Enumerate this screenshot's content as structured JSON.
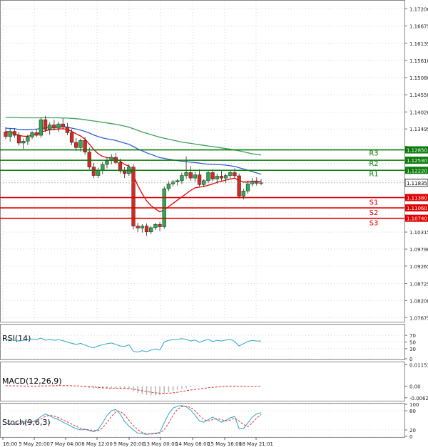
{
  "colors": {
    "up": "#32a852",
    "down": "#d42a1f",
    "ma_fast": "#e00000",
    "ma_mid": "#2f5fd0",
    "ma_slow": "#3a9f5a",
    "resistance": "#0a7a0a",
    "support": "#e00000",
    "indicator": "#2aa6c8",
    "signal": "#e03030",
    "grid": "#b8b8b8"
  },
  "chart_data": [
    {
      "type": "candlestick",
      "title": "",
      "x_labels": [
        "16:00",
        "5 May 20:00",
        "7 May 04:00",
        "8 May 12:00",
        "9 May 20:00",
        "13 May 00:00",
        "14 May 08:00",
        "15 May 16:00",
        "18 May 21:01"
      ],
      "y_ticks": [
        "1.17200",
        "1.16675",
        "1.16135",
        "1.15610",
        "1.15080",
        "1.14550",
        "1.14020",
        "1.13495",
        "1.12960",
        "1.12430",
        "1.11900",
        "1.11375",
        "1.10840",
        "1.10315",
        "1.09790",
        "1.09265",
        "1.08725",
        "1.08200",
        "1.07675"
      ],
      "ylim": [
        1.0755,
        1.1745
      ],
      "candles": [
        [
          1.134,
          1.1355,
          1.1318,
          1.1326
        ],
        [
          1.1326,
          1.135,
          1.131,
          1.1342
        ],
        [
          1.1342,
          1.1352,
          1.1322,
          1.133
        ],
        [
          1.133,
          1.134,
          1.1298,
          1.1306
        ],
        [
          1.1306,
          1.132,
          1.1288,
          1.1312
        ],
        [
          1.1312,
          1.1332,
          1.13,
          1.1325
        ],
        [
          1.1325,
          1.1343,
          1.1318,
          1.1338
        ],
        [
          1.1338,
          1.135,
          1.1325,
          1.133
        ],
        [
          1.133,
          1.1385,
          1.1322,
          1.1378
        ],
        [
          1.1378,
          1.139,
          1.134,
          1.1348
        ],
        [
          1.1348,
          1.137,
          1.1332,
          1.1362
        ],
        [
          1.1362,
          1.1378,
          1.1345,
          1.1352
        ],
        [
          1.1352,
          1.1372,
          1.134,
          1.1365
        ],
        [
          1.1365,
          1.1382,
          1.1348,
          1.1355
        ],
        [
          1.1355,
          1.1368,
          1.133,
          1.1338
        ],
        [
          1.1338,
          1.1348,
          1.13,
          1.1308
        ],
        [
          1.1308,
          1.1322,
          1.1282,
          1.1292
        ],
        [
          1.1292,
          1.132,
          1.128,
          1.1314
        ],
        [
          1.1314,
          1.1325,
          1.127,
          1.1278
        ],
        [
          1.1278,
          1.1292,
          1.1225,
          1.1232
        ],
        [
          1.1232,
          1.1245,
          1.1198,
          1.1206
        ],
        [
          1.1206,
          1.123,
          1.1198,
          1.1222
        ],
        [
          1.1222,
          1.1248,
          1.121,
          1.124
        ],
        [
          1.124,
          1.1262,
          1.1228,
          1.1252
        ],
        [
          1.1252,
          1.1272,
          1.124,
          1.1262
        ],
        [
          1.1262,
          1.1276,
          1.124,
          1.1246
        ],
        [
          1.1246,
          1.1258,
          1.1212,
          1.122
        ],
        [
          1.122,
          1.1232,
          1.1198,
          1.1212
        ],
        [
          1.1212,
          1.124,
          1.1205,
          1.1232
        ],
        [
          1.1232,
          1.124,
          1.104,
          1.105
        ],
        [
          1.105,
          1.106,
          1.1032,
          1.1044
        ],
        [
          1.1044,
          1.1056,
          1.103,
          1.105
        ],
        [
          1.105,
          1.1058,
          1.102,
          1.1032
        ],
        [
          1.1032,
          1.105,
          1.1025,
          1.1045
        ],
        [
          1.1045,
          1.106,
          1.1038,
          1.1055
        ],
        [
          1.1055,
          1.1062,
          1.1035,
          1.1048
        ],
        [
          1.1048,
          1.1172,
          1.1042,
          1.1165
        ],
        [
          1.1165,
          1.1188,
          1.1158,
          1.118
        ],
        [
          1.118,
          1.1192,
          1.1172,
          1.1186
        ],
        [
          1.1186,
          1.1196,
          1.1175,
          1.119
        ],
        [
          1.119,
          1.1215,
          1.118,
          1.1206
        ],
        [
          1.1206,
          1.1265,
          1.1195,
          1.1215
        ],
        [
          1.1215,
          1.1235,
          1.119,
          1.1198
        ],
        [
          1.1198,
          1.1218,
          1.1188,
          1.1208
        ],
        [
          1.1208,
          1.1225,
          1.1172,
          1.1178
        ],
        [
          1.1178,
          1.1195,
          1.117,
          1.119
        ],
        [
          1.119,
          1.1222,
          1.1182,
          1.1215
        ],
        [
          1.1215,
          1.1225,
          1.1188,
          1.1195
        ],
        [
          1.1195,
          1.1212,
          1.118,
          1.1204
        ],
        [
          1.1204,
          1.122,
          1.119,
          1.1198
        ],
        [
          1.1198,
          1.1212,
          1.1182,
          1.1206
        ],
        [
          1.1206,
          1.1222,
          1.1196,
          1.1215
        ],
        [
          1.1215,
          1.1228,
          1.1198,
          1.1205
        ],
        [
          1.1205,
          1.1212,
          1.1135,
          1.1142
        ],
        [
          1.1142,
          1.1165,
          1.1132,
          1.1158
        ],
        [
          1.1158,
          1.119,
          1.115,
          1.118
        ],
        [
          1.118,
          1.1198,
          1.1172,
          1.1188
        ],
        [
          1.1188,
          1.12,
          1.1175,
          1.1182
        ],
        [
          1.1182,
          1.1195,
          1.1176,
          1.11835
        ]
      ],
      "moving_averages": [
        {
          "color_key": "ma_fast",
          "start": 0,
          "values": [
            1.1342,
            1.134,
            1.1335,
            1.133,
            1.1327,
            1.1327,
            1.133,
            1.1333,
            1.134,
            1.1344,
            1.1347,
            1.1348,
            1.1349,
            1.135,
            1.1348,
            1.1342,
            1.1334,
            1.1328,
            1.1318,
            1.1303,
            1.1286,
            1.1273,
            1.1265,
            1.1261,
            1.126,
            1.1258,
            1.125,
            1.124,
            1.1235,
            1.1205,
            1.1175,
            1.115,
            1.1128,
            1.1113,
            1.1103,
            1.1094,
            1.11,
            1.111,
            1.112,
            1.113,
            1.114,
            1.115,
            1.116,
            1.1168,
            1.117,
            1.1172,
            1.1176,
            1.118,
            1.1185,
            1.1188,
            1.1192,
            1.1195,
            1.1198,
            1.119,
            1.1186,
            1.1186,
            1.1188,
            1.1188,
            1.1186
          ]
        },
        {
          "color_key": "ma_mid",
          "start": 0,
          "values": [
            1.1352,
            1.1351,
            1.135,
            1.1348,
            1.1347,
            1.1347,
            1.1348,
            1.1349,
            1.1351,
            1.1353,
            1.1354,
            1.1355,
            1.1356,
            1.1356,
            1.1355,
            1.1352,
            1.1349,
            1.1346,
            1.1342,
            1.1337,
            1.1331,
            1.1326,
            1.1322,
            1.1319,
            1.1317,
            1.1314,
            1.131,
            1.1306,
            1.1302,
            1.1295,
            1.1288,
            1.1282,
            1.1276,
            1.1271,
            1.1266,
            1.1261,
            1.1259,
            1.1256,
            1.1254,
            1.1252,
            1.125,
            1.1249,
            1.1247,
            1.1246,
            1.1244,
            1.1242,
            1.1241,
            1.124,
            1.124,
            1.1239,
            1.1238,
            1.1236,
            1.1234,
            1.123,
            1.1226,
            1.1222,
            1.1218,
            1.1214,
            1.121
          ]
        },
        {
          "color_key": "ma_slow",
          "start": 0,
          "values": [
            1.1385,
            1.1385,
            1.1385,
            1.1384,
            1.1384,
            1.1384,
            1.1384,
            1.1384,
            1.1384,
            1.1384,
            1.1384,
            1.1384,
            1.1384,
            1.1383,
            1.1383,
            1.1382,
            1.1381,
            1.138,
            1.1378,
            1.1376,
            1.1374,
            1.1372,
            1.137,
            1.1368,
            1.1366,
            1.1364,
            1.1361,
            1.1358,
            1.1355,
            1.135,
            1.1345,
            1.134,
            1.1336,
            1.1332,
            1.1328,
            1.1324,
            1.1321,
            1.1318,
            1.1315,
            1.1312,
            1.1309,
            1.1307,
            1.1305,
            1.1303,
            1.1301,
            1.1299,
            1.1297,
            1.1295,
            1.1293,
            1.1291,
            1.1289,
            1.1287,
            1.1285,
            1.1282,
            1.1279,
            1.1276,
            1.1273,
            1.1271,
            1.1269
          ]
        }
      ],
      "levels": [
        {
          "label": "R3",
          "value_text": "1.12850",
          "value": 1.1285,
          "color_key": "resistance"
        },
        {
          "label": "R2",
          "value_text": "1.12530",
          "value": 1.1253,
          "color_key": "resistance"
        },
        {
          "label": "R1",
          "value_text": "1.12220",
          "value": 1.1222,
          "color_key": "resistance"
        },
        {
          "label": "S1",
          "value_text": "1.11380",
          "value": 1.1138,
          "color_key": "support"
        },
        {
          "label": "S2",
          "value_text": "1.11060",
          "value": 1.1106,
          "color_key": "support"
        },
        {
          "label": "S3",
          "value_text": "1.10740",
          "value": 1.1074,
          "color_key": "support"
        }
      ],
      "hidden_ticks": [
        "1.12430",
        "1.12960",
        "1.10840"
      ],
      "current_price": {
        "value": 1.11835,
        "text": "1.11835"
      }
    },
    {
      "type": "line",
      "title": "RSI(14)",
      "y_ticks": [
        "70",
        "50",
        "30",
        "0"
      ],
      "ylim": [
        0,
        100
      ],
      "series": [
        {
          "color_key": "indicator",
          "values": [
            58,
            57,
            55,
            53,
            55,
            57,
            59,
            57,
            62,
            55,
            58,
            55,
            57,
            54,
            50,
            46,
            43,
            46,
            41,
            36,
            33,
            38,
            42,
            45,
            47,
            43,
            38,
            37,
            42,
            22,
            20,
            24,
            21,
            26,
            29,
            26,
            50,
            55,
            57,
            58,
            60,
            58,
            53,
            56,
            49,
            54,
            58,
            51,
            55,
            53,
            56,
            58,
            52,
            38,
            45,
            52,
            55,
            53,
            53
          ]
        }
      ]
    },
    {
      "type": "bar",
      "title": "MACD(12,26,9)",
      "y_ticks": [
        "0.011537",
        "0.00",
        "-0.006293"
      ],
      "ylim": [
        -0.0075,
        0.0125
      ],
      "series": [
        {
          "color_key": "grid",
          "values": [
            0.0002,
            0.0002,
            0.0001,
            0.0,
            -0.0001,
            -0.0001,
            0.0,
            0.0001,
            0.0003,
            0.0003,
            0.0004,
            0.0004,
            0.0004,
            0.0003,
            0.0002,
            0.0,
            -0.0002,
            -0.0003,
            -0.0006,
            -0.001,
            -0.0013,
            -0.0014,
            -0.0014,
            -0.0013,
            -0.0012,
            -0.0012,
            -0.0013,
            -0.0015,
            -0.0015,
            -0.0027,
            -0.0036,
            -0.0042,
            -0.0047,
            -0.0049,
            -0.0049,
            -0.0049,
            -0.0041,
            -0.0033,
            -0.0026,
            -0.002,
            -0.0014,
            -0.0009,
            -0.0006,
            -0.0003,
            -0.0002,
            -0.0001,
            0.0001,
            0.0001,
            0.0002,
            0.0002,
            0.0003,
            0.0004,
            0.0004,
            0.0,
            -0.0002,
            -0.0002,
            -0.0001,
            0.0,
            0.0
          ]
        },
        {
          "color_key": "signal",
          "values": [
            0.0002,
            0.0002,
            0.0002,
            0.0001,
            0.0001,
            0.0,
            0.0,
            0.0,
            0.0001,
            0.0001,
            0.0002,
            0.0002,
            0.0003,
            0.0003,
            0.0003,
            0.0002,
            0.0001,
            0.0,
            -0.0001,
            -0.0003,
            -0.0005,
            -0.0007,
            -0.0009,
            -0.001,
            -0.0011,
            -0.0011,
            -0.0012,
            -0.0012,
            -0.0013,
            -0.0016,
            -0.002,
            -0.0025,
            -0.0029,
            -0.0033,
            -0.0036,
            -0.0038,
            -0.0039,
            -0.0038,
            -0.0036,
            -0.0033,
            -0.0029,
            -0.0025,
            -0.0021,
            -0.0018,
            -0.0015,
            -0.0012,
            -0.0009,
            -0.0007,
            -0.0005,
            -0.0003,
            -0.0002,
            -0.0001,
            0.0,
            0.0,
            0.0,
            -0.0001,
            -0.0001,
            -0.0001,
            -0.0001
          ]
        }
      ]
    },
    {
      "type": "line",
      "title": "Stoch(9,6,3)",
      "y_ticks": [
        "100",
        "80",
        "20",
        "0"
      ],
      "ylim": [
        0,
        100
      ],
      "series": [
        {
          "color_key": "indicator",
          "values": [
            40,
            38,
            36,
            40,
            44,
            47,
            45,
            50,
            62,
            70,
            64,
            57,
            52,
            44,
            38,
            30,
            24,
            20,
            22,
            18,
            14,
            22,
            42,
            65,
            80,
            84,
            70,
            46,
            32,
            20,
            10,
            8,
            6,
            8,
            10,
            12,
            42,
            70,
            88,
            94,
            96,
            92,
            82,
            66,
            48,
            44,
            52,
            60,
            52,
            44,
            50,
            58,
            62,
            24,
            24,
            42,
            60,
            70,
            74
          ]
        },
        {
          "color_key": "signal",
          "values": [
            42,
            40,
            38,
            38,
            40,
            43,
            46,
            48,
            54,
            62,
            66,
            63,
            58,
            51,
            45,
            38,
            31,
            25,
            22,
            20,
            18,
            18,
            26,
            43,
            62,
            76,
            78,
            67,
            50,
            33,
            21,
            12,
            8,
            7,
            8,
            10,
            21,
            41,
            66,
            84,
            93,
            94,
            90,
            80,
            65,
            52,
            48,
            52,
            55,
            52,
            48,
            51,
            57,
            48,
            37,
            30,
            42,
            57,
            68
          ]
        }
      ]
    }
  ]
}
